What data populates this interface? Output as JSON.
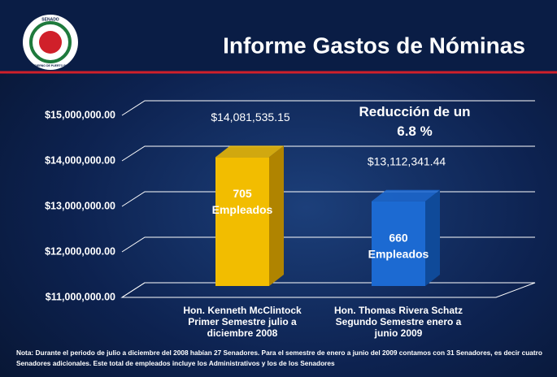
{
  "logo": {
    "top": "SENADO",
    "bottom": "GOBIERNO DE PUERTO RICO"
  },
  "chart_data": {
    "type": "bar3d",
    "title": "Informe Gastos de Nóminas",
    "categories": [
      "Hon. Kenneth McClintock Primer Semestre julio a diciembre 2008",
      "Hon. Thomas Rivera Schatz Segundo Semestre enero a junio 2009"
    ],
    "values": [
      14081535.15,
      13112341.44
    ],
    "value_labels": [
      "$14,081,535.15",
      "$13,112,341.44"
    ],
    "colors": [
      "#f2bd00",
      "#1c6ad2"
    ],
    "side_colors": [
      "#b08400",
      "#0f4a99"
    ],
    "employee_labels": [
      {
        "count": 705,
        "label": "Empleados"
      },
      {
        "count": 660,
        "label": "Empleados"
      }
    ],
    "annotation": "Reducción de un 6.8 %",
    "ylim": [
      11000000,
      15000000
    ],
    "yticks": [
      {
        "value": 11000000,
        "label": "$11,000,000.00"
      },
      {
        "value": 12000000,
        "label": "$12,000,000.00"
      },
      {
        "value": 13000000,
        "label": "$13,000,000.00"
      },
      {
        "value": 14000000,
        "label": "$14,000,000.00"
      },
      {
        "value": 15000000,
        "label": "$15,000,000.00"
      }
    ],
    "grid": true,
    "note": "Nota: Durante el periodo de julio a diciembre del 2008 habían 27 Senadores.  Para el semestre de enero a junio del 2009 contamos con 31 Senadores, es decir cuatro Senadores adicionales.  Este total de empleados incluye los  Administrativos  y los de los Senadores"
  }
}
